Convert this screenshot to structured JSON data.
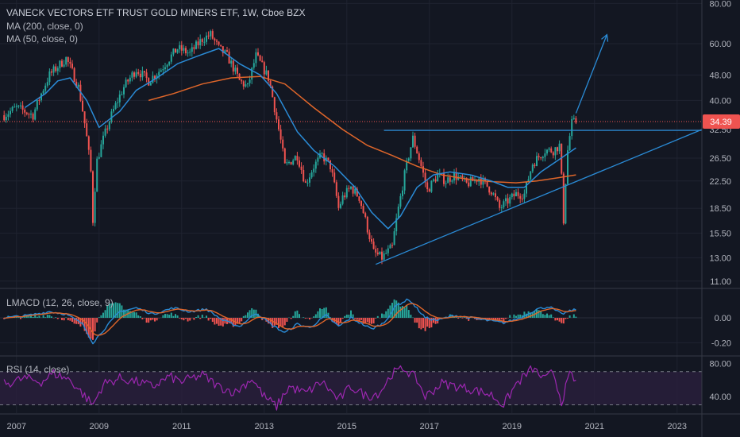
{
  "header": {
    "title": "VANECK VECTORS ETF TRUST GOLD MINERS ETF, 1W, Cboe BZX",
    "ma200_label": "MA (200, close, 0)",
    "ma50_label": "MA (50, close, 0)"
  },
  "colors": {
    "background": "#131722",
    "grid": "#1f2330",
    "up": "#26a69a",
    "down": "#ef5350",
    "ma200": "#e0662a",
    "ma50": "#2a8bd6",
    "trendline": "#2a8bd6",
    "price_line": "#ef5350",
    "macd": "#2a8bd6",
    "signal": "#e0662a",
    "rsi": "#9c27b0",
    "rsi_band": "#2a1f3d"
  },
  "chart_data": [
    {
      "type": "candlestick",
      "name": "price",
      "x_ticks": [
        "2007",
        "2009",
        "2011",
        "2013",
        "2015",
        "2017",
        "2019",
        "2021",
        "2023"
      ],
      "y_scale": "log",
      "ylim": [
        10.5,
        82
      ],
      "y_ticks": [
        "80.00",
        "60.00",
        "48.00",
        "40.00",
        "32.50",
        "26.50",
        "22.50",
        "18.50",
        "15.50",
        "13.00",
        "11.00"
      ],
      "last_price": "34.39",
      "x_range": [
        2006.6,
        2023.6
      ],
      "price_path": [
        [
          2006.7,
          36
        ],
        [
          2007.0,
          38
        ],
        [
          2007.4,
          36
        ],
        [
          2007.8,
          48
        ],
        [
          2008.2,
          54
        ],
        [
          2008.5,
          44
        ],
        [
          2008.8,
          24
        ],
        [
          2008.85,
          17
        ],
        [
          2008.95,
          26
        ],
        [
          2009.3,
          36
        ],
        [
          2009.6,
          44
        ],
        [
          2009.9,
          50
        ],
        [
          2010.2,
          46
        ],
        [
          2010.5,
          50
        ],
        [
          2010.9,
          58
        ],
        [
          2011.2,
          56
        ],
        [
          2011.5,
          62
        ],
        [
          2011.7,
          64
        ],
        [
          2011.9,
          58
        ],
        [
          2012.1,
          55
        ],
        [
          2012.4,
          46
        ],
        [
          2012.6,
          44
        ],
        [
          2012.8,
          55
        ],
        [
          2013.1,
          47
        ],
        [
          2013.3,
          35
        ],
        [
          2013.5,
          25
        ],
        [
          2013.8,
          27
        ],
        [
          2014.0,
          22
        ],
        [
          2014.2,
          25
        ],
        [
          2014.4,
          27
        ],
        [
          2014.6,
          25
        ],
        [
          2014.8,
          18.5
        ],
        [
          2014.9,
          20
        ],
        [
          2015.1,
          21.5
        ],
        [
          2015.3,
          20
        ],
        [
          2015.5,
          16
        ],
        [
          2015.65,
          13.5
        ],
        [
          2015.85,
          13
        ],
        [
          2016.1,
          14
        ],
        [
          2016.3,
          20
        ],
        [
          2016.6,
          30.5
        ],
        [
          2016.8,
          25
        ],
        [
          2016.95,
          21
        ],
        [
          2017.2,
          23.5
        ],
        [
          2017.4,
          22.5
        ],
        [
          2017.6,
          23.5
        ],
        [
          2017.9,
          22
        ],
        [
          2018.2,
          23
        ],
        [
          2018.5,
          21
        ],
        [
          2018.7,
          18.5
        ],
        [
          2018.9,
          19.5
        ],
        [
          2019.1,
          20.5
        ],
        [
          2019.3,
          20.5
        ],
        [
          2019.5,
          25.5
        ],
        [
          2019.8,
          28
        ],
        [
          2020.0,
          28
        ],
        [
          2020.15,
          29
        ],
        [
          2020.25,
          17
        ],
        [
          2020.35,
          28
        ],
        [
          2020.45,
          34
        ],
        [
          2020.55,
          34.4
        ]
      ],
      "ma200_path": [
        [
          2010.2,
          40
        ],
        [
          2010.8,
          42
        ],
        [
          2011.5,
          45
        ],
        [
          2012.2,
          47
        ],
        [
          2012.9,
          47.5
        ],
        [
          2013.5,
          45
        ],
        [
          2014.2,
          38
        ],
        [
          2014.9,
          32.5
        ],
        [
          2015.5,
          29
        ],
        [
          2016.1,
          27
        ],
        [
          2016.7,
          25
        ],
        [
          2017.3,
          23.5
        ],
        [
          2017.9,
          22.8
        ],
        [
          2018.5,
          22.4
        ],
        [
          2019.1,
          22.2
        ],
        [
          2019.6,
          22.5
        ],
        [
          2020.1,
          23
        ],
        [
          2020.55,
          23.5
        ]
      ],
      "ma50_path": [
        [
          2007.2,
          38
        ],
        [
          2007.7,
          42
        ],
        [
          2008.0,
          46
        ],
        [
          2008.3,
          47
        ],
        [
          2008.7,
          40
        ],
        [
          2009.0,
          33
        ],
        [
          2009.5,
          37
        ],
        [
          2009.9,
          43
        ],
        [
          2010.4,
          47
        ],
        [
          2010.9,
          52
        ],
        [
          2011.4,
          55
        ],
        [
          2011.9,
          58
        ],
        [
          2012.4,
          52
        ],
        [
          2012.9,
          48
        ],
        [
          2013.3,
          42
        ],
        [
          2013.8,
          32
        ],
        [
          2014.2,
          28
        ],
        [
          2014.7,
          25
        ],
        [
          2015.2,
          21.5
        ],
        [
          2015.6,
          18
        ],
        [
          2016.0,
          16
        ],
        [
          2016.3,
          17.5
        ],
        [
          2016.7,
          21.5
        ],
        [
          2017.1,
          23.5
        ],
        [
          2017.5,
          24
        ],
        [
          2018.0,
          23.5
        ],
        [
          2018.5,
          22.5
        ],
        [
          2018.9,
          21.5
        ],
        [
          2019.3,
          21.5
        ],
        [
          2019.7,
          24
        ],
        [
          2020.1,
          26
        ],
        [
          2020.55,
          28.5
        ]
      ],
      "trendlines": [
        {
          "name": "support-trendline",
          "from": [
            2015.7,
            12.4
          ],
          "to": [
            2023.6,
            32.5
          ]
        },
        {
          "name": "resistance-horizontal",
          "from": [
            2015.9,
            32.3
          ],
          "to": [
            2023.6,
            32.3
          ]
        },
        {
          "name": "projection-arrow",
          "from": [
            2020.55,
            36.5
          ],
          "to": [
            2021.3,
            64
          ]
        }
      ]
    },
    {
      "type": "line",
      "name": "macd",
      "series": [
        {
          "name": "LMACD (12, 26, close, 9)"
        }
      ],
      "y_ticks": [
        "0.00",
        "-0.20"
      ],
      "ylim": [
        -0.3,
        0.23
      ],
      "macd_path": [
        [
          2006.7,
          0.0
        ],
        [
          2007.3,
          0.02
        ],
        [
          2007.8,
          0.05
        ],
        [
          2008.2,
          0.03
        ],
        [
          2008.6,
          -0.05
        ],
        [
          2008.85,
          -0.2
        ],
        [
          2009.1,
          -0.1
        ],
        [
          2009.5,
          0.05
        ],
        [
          2009.9,
          0.08
        ],
        [
          2010.3,
          0.03
        ],
        [
          2010.8,
          0.08
        ],
        [
          2011.2,
          0.05
        ],
        [
          2011.6,
          0.07
        ],
        [
          2012.0,
          -0.02
        ],
        [
          2012.4,
          -0.07
        ],
        [
          2012.8,
          0.04
        ],
        [
          2013.2,
          -0.06
        ],
        [
          2013.5,
          -0.12
        ],
        [
          2013.8,
          -0.05
        ],
        [
          2014.1,
          -0.08
        ],
        [
          2014.5,
          0.02
        ],
        [
          2014.8,
          -0.07
        ],
        [
          2015.1,
          0.0
        ],
        [
          2015.6,
          -0.09
        ],
        [
          2015.9,
          -0.04
        ],
        [
          2016.2,
          0.1
        ],
        [
          2016.5,
          0.15
        ],
        [
          2016.9,
          0.0
        ],
        [
          2017.2,
          -0.02
        ],
        [
          2017.6,
          0.02
        ],
        [
          2018.0,
          0.0
        ],
        [
          2018.4,
          -0.02
        ],
        [
          2018.8,
          -0.04
        ],
        [
          2019.2,
          0.0
        ],
        [
          2019.6,
          0.07
        ],
        [
          2019.9,
          0.09
        ],
        [
          2020.2,
          0.03
        ],
        [
          2020.55,
          0.07
        ]
      ]
    },
    {
      "type": "line",
      "name": "rsi",
      "series": [
        {
          "name": "RSI (14, close)"
        }
      ],
      "y_ticks": [
        "80.00",
        "40.00"
      ],
      "ylim": [
        20,
        88
      ],
      "band": [
        30,
        70
      ],
      "rsi_path": [
        [
          2006.7,
          55
        ],
        [
          2007.2,
          62
        ],
        [
          2007.6,
          58
        ],
        [
          2007.9,
          68
        ],
        [
          2008.3,
          60
        ],
        [
          2008.7,
          38
        ],
        [
          2008.85,
          30
        ],
        [
          2009.1,
          55
        ],
        [
          2009.5,
          62
        ],
        [
          2009.9,
          58
        ],
        [
          2010.3,
          52
        ],
        [
          2010.7,
          64
        ],
        [
          2011.0,
          58
        ],
        [
          2011.5,
          66
        ],
        [
          2011.9,
          52
        ],
        [
          2012.3,
          45
        ],
        [
          2012.7,
          62
        ],
        [
          2013.0,
          40
        ],
        [
          2013.3,
          28
        ],
        [
          2013.6,
          52
        ],
        [
          2014.0,
          44
        ],
        [
          2014.4,
          58
        ],
        [
          2014.8,
          36
        ],
        [
          2015.1,
          52
        ],
        [
          2015.5,
          40
        ],
        [
          2015.8,
          45
        ],
        [
          2016.1,
          68
        ],
        [
          2016.4,
          74
        ],
        [
          2016.7,
          60
        ],
        [
          2016.9,
          40
        ],
        [
          2017.3,
          56
        ],
        [
          2017.7,
          52
        ],
        [
          2018.1,
          48
        ],
        [
          2018.5,
          42
        ],
        [
          2018.8,
          30
        ],
        [
          2019.1,
          55
        ],
        [
          2019.5,
          74
        ],
        [
          2019.8,
          60
        ],
        [
          2020.0,
          70
        ],
        [
          2020.2,
          34
        ],
        [
          2020.4,
          66
        ],
        [
          2020.55,
          58
        ]
      ]
    }
  ],
  "macd_legend": "LMACD (12, 26, close, 9)",
  "rsi_legend": "RSI (14, close)"
}
